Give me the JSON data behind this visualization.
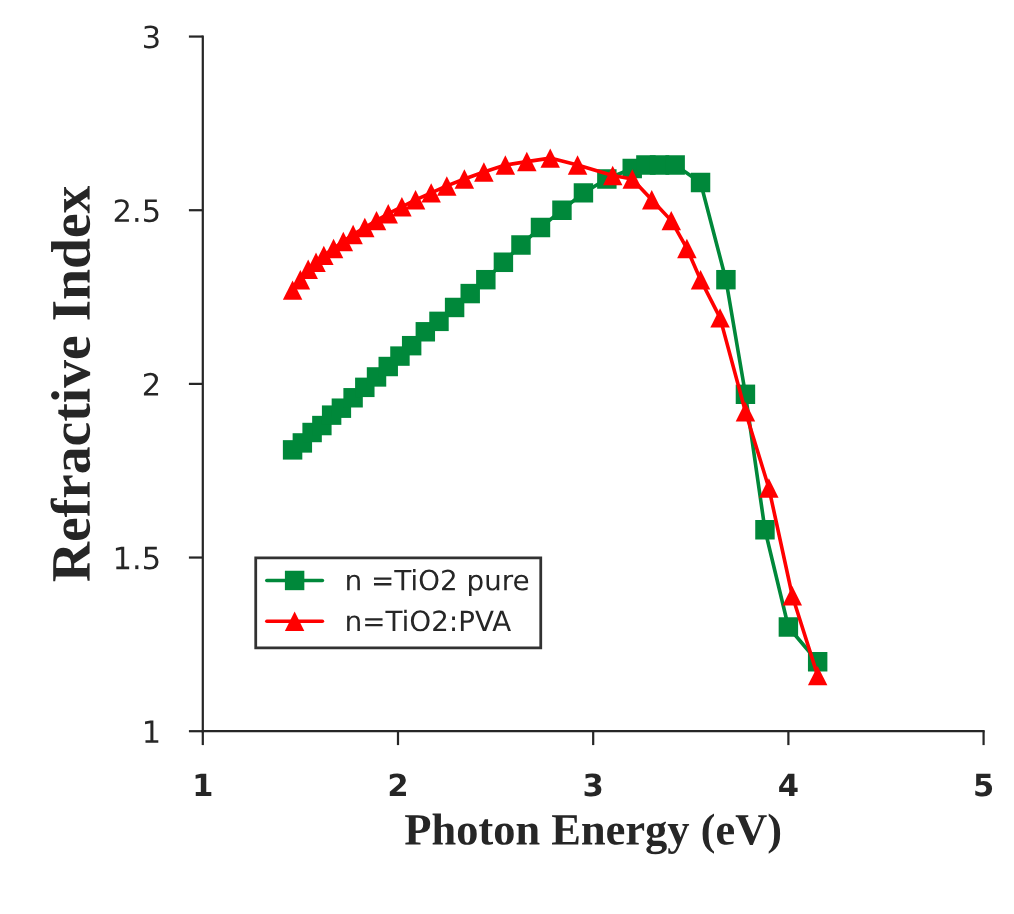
{
  "chart_data": {
    "type": "line",
    "xlabel": "Photon Energy (eV)",
    "ylabel": "Refractive Index",
    "xlim": [
      1,
      5
    ],
    "xticks": [
      1,
      2,
      3,
      4,
      5
    ],
    "ylim": [
      1,
      3
    ],
    "yticks": [
      1,
      1.5,
      2,
      2.5,
      3
    ],
    "grid": false,
    "legend": "bottom left",
    "series": [
      {
        "name": "n =TiO2 pure",
        "color": "#00883a",
        "marker": "square",
        "x": [
          1.46,
          1.51,
          1.56,
          1.61,
          1.66,
          1.71,
          1.77,
          1.83,
          1.89,
          1.95,
          2.01,
          2.07,
          2.14,
          2.21,
          2.29,
          2.37,
          2.45,
          2.54,
          2.63,
          2.73,
          2.84,
          2.95,
          3.07,
          3.2,
          3.27,
          3.34,
          3.42,
          3.55,
          3.68,
          3.78,
          3.88,
          4.0,
          4.15
        ],
        "values": [
          1.81,
          1.83,
          1.86,
          1.88,
          1.91,
          1.93,
          1.96,
          1.99,
          2.02,
          2.05,
          2.08,
          2.11,
          2.15,
          2.18,
          2.22,
          2.26,
          2.3,
          2.35,
          2.4,
          2.45,
          2.5,
          2.55,
          2.59,
          2.62,
          2.63,
          2.63,
          2.63,
          2.58,
          2.3,
          1.97,
          1.58,
          1.3,
          1.2
        ]
      },
      {
        "name": "n=TiO2:PVA",
        "color": "#ff0000",
        "marker": "triangle",
        "x": [
          1.46,
          1.5,
          1.54,
          1.58,
          1.62,
          1.67,
          1.72,
          1.77,
          1.83,
          1.89,
          1.95,
          2.02,
          2.09,
          2.17,
          2.25,
          2.34,
          2.44,
          2.55,
          2.66,
          2.78,
          2.92,
          3.1,
          3.2,
          3.3,
          3.4,
          3.48,
          3.55,
          3.65,
          3.78,
          3.9,
          4.02,
          4.15
        ],
        "values": [
          2.27,
          2.3,
          2.33,
          2.35,
          2.37,
          2.39,
          2.41,
          2.43,
          2.45,
          2.47,
          2.49,
          2.51,
          2.53,
          2.55,
          2.57,
          2.59,
          2.61,
          2.63,
          2.64,
          2.65,
          2.63,
          2.6,
          2.59,
          2.53,
          2.47,
          2.39,
          2.3,
          2.19,
          1.92,
          1.7,
          1.39,
          1.16
        ]
      }
    ]
  }
}
